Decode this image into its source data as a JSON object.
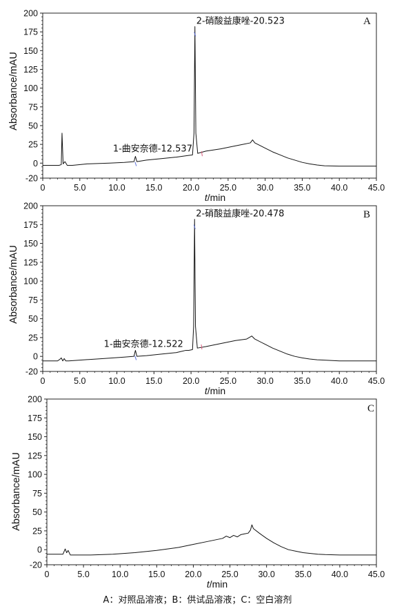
{
  "caption": "A：对照品溶液；B：供试品溶液；C：空白溶剂",
  "chart_data": [
    {
      "type": "line",
      "panel_label": "A",
      "xlabel": "t/min",
      "ylabel": "Absorbance/mAU",
      "xlim": [
        0,
        45
      ],
      "ylim": [
        -20,
        200
      ],
      "xticks": [
        "0",
        "5.0",
        "10.0",
        "15.0",
        "20.0",
        "25.0",
        "30.0",
        "35.0",
        "40.0",
        "45.0"
      ],
      "yticks": [
        "200",
        "175",
        "150",
        "125",
        "100",
        "75",
        "50",
        "25",
        "0",
        "-20"
      ],
      "annotations": [
        {
          "text": "1-曲安奈德-12.537",
          "x": 12.537,
          "y": 9
        },
        {
          "text": "2-硝酸益康唑-20.523",
          "x": 20.523,
          "y": 182
        }
      ],
      "series": [
        {
          "values": [
            [
              0,
              -3
            ],
            [
              2.2,
              -3
            ],
            [
              2.5,
              -2
            ],
            [
              2.6,
              40
            ],
            [
              2.75,
              -1
            ],
            [
              3.0,
              2
            ],
            [
              3.3,
              -3
            ],
            [
              4.0,
              -3
            ],
            [
              6.0,
              -1
            ],
            [
              9.0,
              0
            ],
            [
              11.0,
              1
            ],
            [
              12.3,
              2
            ],
            [
              12.5,
              9
            ],
            [
              12.7,
              2
            ],
            [
              14.0,
              4
            ],
            [
              16.0,
              6
            ],
            [
              18.0,
              8
            ],
            [
              19.5,
              10
            ],
            [
              20.2,
              11
            ],
            [
              20.4,
              40
            ],
            [
              20.523,
              182
            ],
            [
              20.65,
              40
            ],
            [
              20.9,
              13
            ],
            [
              22.0,
              16
            ],
            [
              24.0,
              19
            ],
            [
              26.0,
              23
            ],
            [
              27.0,
              25
            ],
            [
              28.0,
              27
            ],
            [
              28.3,
              31
            ],
            [
              28.6,
              27
            ],
            [
              30.0,
              20
            ],
            [
              31.0,
              15
            ],
            [
              32.0,
              11
            ],
            [
              33.0,
              7
            ],
            [
              34.0,
              4
            ],
            [
              35.0,
              1
            ],
            [
              36.0,
              -1
            ],
            [
              37.0,
              -2.5
            ],
            [
              38.0,
              -3.5
            ],
            [
              40.0,
              -4
            ],
            [
              43.0,
              -4
            ],
            [
              45.0,
              -4
            ]
          ]
        }
      ]
    },
    {
      "type": "line",
      "panel_label": "B",
      "xlabel": "t/min",
      "ylabel": "Absorbance/mAU",
      "xlim": [
        0,
        45
      ],
      "ylim": [
        -20,
        200
      ],
      "xticks": [
        "0",
        "5.0",
        "10.0",
        "15.0",
        "20.0",
        "25.0",
        "30.0",
        "35.0",
        "40.0",
        "45.0"
      ],
      "yticks": [
        "200",
        "175",
        "150",
        "125",
        "100",
        "75",
        "50",
        "25",
        "0",
        "-20"
      ],
      "annotations": [
        {
          "text": "1-曲安奈德-12.522",
          "x": 12.522,
          "y": 8
        },
        {
          "text": "2-硝酸益康唑-20.478",
          "x": 20.478,
          "y": 182
        }
      ],
      "series": [
        {
          "values": [
            [
              0,
              -6
            ],
            [
              2.0,
              -6
            ],
            [
              2.3,
              -4
            ],
            [
              2.5,
              -2
            ],
            [
              2.7,
              -6
            ],
            [
              2.9,
              -3
            ],
            [
              3.1,
              -6
            ],
            [
              3.5,
              -6
            ],
            [
              5.0,
              -5
            ],
            [
              8.0,
              -3
            ],
            [
              11.0,
              -1
            ],
            [
              12.3,
              0
            ],
            [
              12.5,
              8
            ],
            [
              12.7,
              0
            ],
            [
              14.0,
              1
            ],
            [
              16.0,
              3
            ],
            [
              18.0,
              5
            ],
            [
              19.3,
              8
            ],
            [
              19.7,
              8
            ],
            [
              20.2,
              9
            ],
            [
              20.35,
              40
            ],
            [
              20.478,
              182
            ],
            [
              20.6,
              40
            ],
            [
              20.85,
              11
            ],
            [
              22.0,
              13
            ],
            [
              24.0,
              17
            ],
            [
              26.0,
              21
            ],
            [
              27.5,
              23
            ],
            [
              28.2,
              27
            ],
            [
              28.6,
              23
            ],
            [
              30.0,
              16
            ],
            [
              31.0,
              11
            ],
            [
              32.0,
              7
            ],
            [
              33.0,
              3
            ],
            [
              34.0,
              0
            ],
            [
              35.0,
              -2
            ],
            [
              36.0,
              -3.5
            ],
            [
              37.0,
              -4.5
            ],
            [
              38.0,
              -5
            ],
            [
              40.0,
              -6
            ],
            [
              45.0,
              -6
            ]
          ]
        }
      ]
    },
    {
      "type": "line",
      "panel_label": "C",
      "xlabel": "t/min",
      "ylabel": "Absorbance/mAU",
      "xlim": [
        0,
        45
      ],
      "ylim": [
        -20,
        200
      ],
      "xticks": [
        "0",
        "5.0",
        "10.0",
        "15.0",
        "20.0",
        "25.0",
        "30.0",
        "35.0",
        "40.0",
        "45.0"
      ],
      "yticks": [
        "200",
        "175",
        "150",
        "125",
        "100",
        "75",
        "50",
        "25",
        "0",
        "-20"
      ],
      "annotations": [],
      "series": [
        {
          "values": [
            [
              0,
              -6
            ],
            [
              2.2,
              -6
            ],
            [
              2.5,
              1
            ],
            [
              2.7,
              -4
            ],
            [
              2.9,
              -1
            ],
            [
              3.2,
              -7
            ],
            [
              4.0,
              -7
            ],
            [
              6.0,
              -7
            ],
            [
              9.0,
              -6
            ],
            [
              12.0,
              -4
            ],
            [
              15.0,
              -1
            ],
            [
              18.0,
              3
            ],
            [
              20.0,
              7
            ],
            [
              22.0,
              11
            ],
            [
              24.0,
              15
            ],
            [
              24.5,
              18
            ],
            [
              25.0,
              16
            ],
            [
              25.5,
              19
            ],
            [
              26.0,
              17
            ],
            [
              26.5,
              20
            ],
            [
              27.0,
              21
            ],
            [
              27.5,
              22
            ],
            [
              27.8,
              26
            ],
            [
              28.0,
              33
            ],
            [
              28.2,
              28
            ],
            [
              29.0,
              22
            ],
            [
              30.0,
              15
            ],
            [
              31.0,
              9
            ],
            [
              32.0,
              4
            ],
            [
              33.0,
              0
            ],
            [
              34.0,
              -2
            ],
            [
              35.0,
              -4
            ],
            [
              36.0,
              -5
            ],
            [
              37.0,
              -6
            ],
            [
              38.0,
              -6.5
            ],
            [
              40.0,
              -7
            ],
            [
              45.0,
              -7
            ]
          ]
        }
      ]
    }
  ]
}
